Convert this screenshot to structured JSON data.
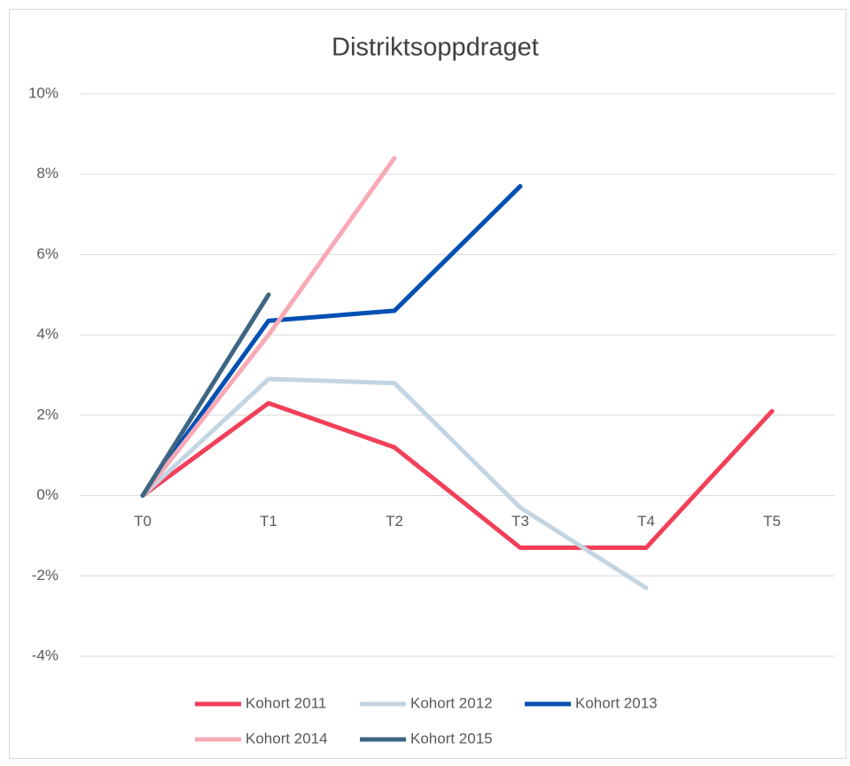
{
  "chart_data": {
    "type": "line",
    "title": "Distriktsoppdraget",
    "categories": [
      "T0",
      "T1",
      "T2",
      "T3",
      "T4",
      "T5"
    ],
    "series": [
      {
        "name": "Kohort 2011",
        "color": "#f2405a",
        "values": [
          0,
          2.3,
          1.2,
          -1.3,
          -1.3,
          2.1
        ]
      },
      {
        "name": "Kohort 2012",
        "color": "#c3d5e2",
        "values": [
          0,
          2.9,
          2.8,
          -0.3,
          -2.3,
          null
        ]
      },
      {
        "name": "Kohort 2013",
        "color": "#0050b4",
        "values": [
          0,
          4.35,
          4.6,
          7.7,
          null,
          null
        ]
      },
      {
        "name": "Kohort 2014",
        "color": "#f7aab6",
        "values": [
          0,
          4.0,
          8.4,
          null,
          null,
          null
        ]
      },
      {
        "name": "Kohort 2015",
        "color": "#3d6682",
        "values": [
          0,
          5.0,
          null,
          null,
          null,
          null
        ]
      }
    ],
    "ylim": [
      -4,
      10
    ],
    "yticks": [
      {
        "value": -4,
        "label": "-4%"
      },
      {
        "value": -2,
        "label": "-2%"
      },
      {
        "value": 0,
        "label": "0%"
      },
      {
        "value": 2,
        "label": "2%"
      },
      {
        "value": 4,
        "label": "4%"
      },
      {
        "value": 6,
        "label": "6%"
      },
      {
        "value": 8,
        "label": "8%"
      },
      {
        "value": 10,
        "label": "10%"
      }
    ],
    "grid": true
  }
}
